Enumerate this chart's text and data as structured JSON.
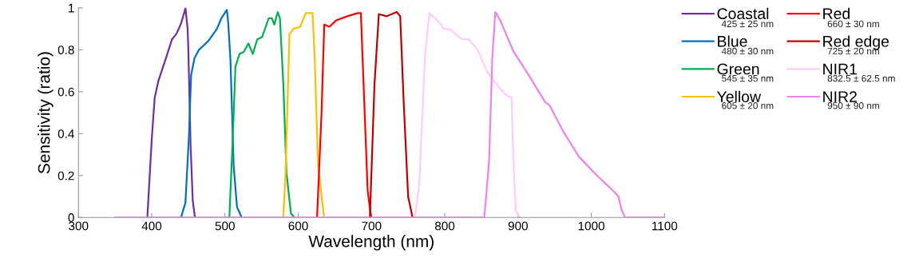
{
  "chart_data": {
    "type": "line",
    "xlabel": "Wavelength (nm)",
    "ylabel": "Sensitivity (ratio)",
    "xlim": [
      300,
      1100
    ],
    "ylim": [
      0,
      1
    ],
    "xticks": [
      300,
      400,
      500,
      600,
      700,
      800,
      900,
      1000,
      1100
    ],
    "yticks": [
      0,
      0.2,
      0.4,
      0.6,
      0.8,
      1
    ],
    "grid": false,
    "legend": "right",
    "marker": "none",
    "line_style": "solid",
    "annotations": [
      "425 ± 25 nm",
      "480 ± 30 nm",
      "545 ± 35 nm",
      "605 ± 20 nm",
      "660 ± 30 nm",
      "725 ± 20 nm",
      "832.5 ± 62.5 nm",
      "950 ± 90 nm"
    ],
    "series": [
      {
        "name": "Coastal",
        "color": "#7030a0",
        "x": [
          394,
          400,
          404,
          409,
          418.5,
          427.7,
          433.6,
          440,
          444.6,
          446,
          449,
          450,
          453,
          456,
          459
        ],
        "values": [
          0,
          0.37,
          0.57,
          0.65,
          0.75,
          0.85,
          0.875,
          0.925,
          0.98,
          1,
          0.9,
          0.8,
          0.35,
          0.08,
          0
        ]
      },
      {
        "name": "Blue",
        "color": "#0070c0",
        "x": [
          440,
          446,
          450.7,
          453.8,
          458.4,
          464.5,
          476.8,
          489,
          495,
          502.6,
          504.4,
          507.5,
          511.8,
          516.4,
          522.8
        ],
        "values": [
          0,
          0.07,
          0.38,
          0.68,
          0.76,
          0.8,
          0.84,
          0.9,
          0.95,
          0.99,
          0.93,
          0.75,
          0.25,
          0.05,
          0
        ]
      },
      {
        "name": "Green",
        "color": "#00b050",
        "x": [
          506,
          510.6,
          514.3,
          519.8,
          525.6,
          532,
          538,
          544,
          550.5,
          559.7,
          564,
          567.3,
          572,
          575,
          579.6,
          584,
          590,
          594.7
        ],
        "values": [
          0,
          0.38,
          0.72,
          0.78,
          0.79,
          0.83,
          0.78,
          0.85,
          0.86,
          0.95,
          0.95,
          0.92,
          0.98,
          0.95,
          0.64,
          0.21,
          0.02,
          0
        ]
      },
      {
        "name": "Yellow",
        "color": "#ffc000",
        "x": [
          579.6,
          582.7,
          588,
          593.5,
          602.6,
          610.3,
          618,
          619.5,
          622.6,
          627,
          634.9
        ],
        "values": [
          0,
          0.21,
          0.875,
          0.9,
          0.91,
          0.975,
          0.975,
          0.975,
          0.75,
          0.25,
          0.01
        ]
      },
      {
        "name": "Red",
        "color": "#ff0000",
        "x": [
          625.7,
          631.8,
          635.5,
          642.5,
          651.7,
          667,
          681,
          685.5,
          688.6,
          694.7,
          699.3
        ],
        "values": [
          0,
          0.5,
          0.92,
          0.91,
          0.94,
          0.96,
          0.975,
          0.975,
          0.69,
          0.13,
          0
        ]
      },
      {
        "name": "Red edge",
        "color": "#c00000",
        "x": [
          697.8,
          704,
          710,
          720.8,
          734.6,
          739.2,
          743.8,
          750,
          756
        ],
        "values": [
          0,
          0.63,
          0.97,
          0.96,
          0.98,
          0.96,
          0.56,
          0.1,
          0
        ]
      },
      {
        "name": "NIR1",
        "color": "#ffccff",
        "x": [
          759,
          765,
          773,
          779,
          789.9,
          799,
          808,
          823.6,
          832.8,
          845,
          857,
          869.7,
          878.9,
          888,
          891,
          894,
          897,
          903
        ],
        "values": [
          0,
          0.15,
          0.77,
          0.975,
          0.94,
          0.9,
          0.895,
          0.85,
          0.85,
          0.8,
          0.7,
          0.64,
          0.6,
          0.575,
          0.575,
          0.25,
          0.03,
          0
        ]
      },
      {
        "name": "NIR2",
        "color": "#ee82ee",
        "x": [
          350,
          854,
          860.5,
          865,
          869,
          875.8,
          894,
          912.6,
          937,
          943,
          961.8,
          983,
          1007.8,
          1032,
          1037,
          1041,
          1046,
          1100
        ],
        "values": [
          0,
          0,
          0.27,
          0.77,
          0.98,
          0.94,
          0.79,
          0.69,
          0.55,
          0.535,
          0.41,
          0.29,
          0.2,
          0.12,
          0.1,
          0.04,
          0,
          0
        ]
      }
    ]
  }
}
